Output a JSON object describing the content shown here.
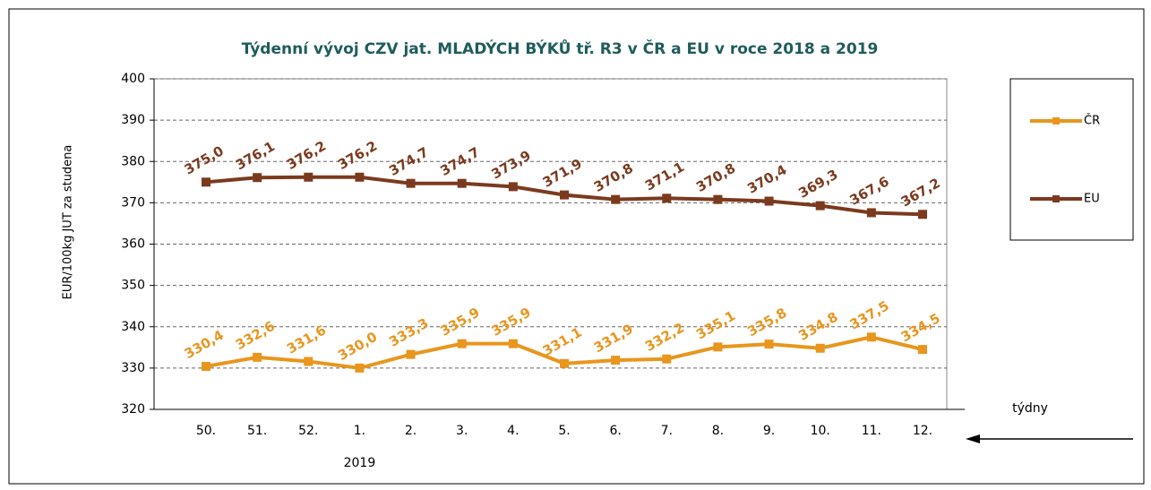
{
  "chart_data": {
    "type": "line",
    "title": "Týdenní  vývoj CZV jat. MLADÝCH BÝKŮ tř. R3  v ČR a EU v roce 2018 a 2019",
    "y_label": "EUR/100kg  JUT za studena",
    "x_label": "týdny",
    "x_sublabel": "2019",
    "categories": [
      "50.",
      "51.",
      "52.",
      "1.",
      "2.",
      "3.",
      "4.",
      "5.",
      "6.",
      "7.",
      "8.",
      "9.",
      "10.",
      "11.",
      "12."
    ],
    "series": [
      {
        "name": "ČR",
        "color": "#e8961e",
        "values": [
          330.4,
          332.6,
          331.6,
          330.0,
          333.3,
          335.9,
          335.9,
          331.1,
          331.9,
          332.2,
          335.1,
          335.8,
          334.8,
          337.5,
          334.5
        ],
        "value_labels": [
          "330,4",
          "332,6",
          "331,6",
          "330,0",
          "333,3",
          "335,9",
          "335,9",
          "331,1",
          "331,9",
          "332,2",
          "335,1",
          "335,8",
          "334,8",
          "337,5",
          "334,5"
        ]
      },
      {
        "name": "EU",
        "color": "#7b3a1e",
        "values": [
          375.0,
          376.1,
          376.2,
          376.2,
          374.7,
          374.7,
          373.9,
          371.9,
          370.8,
          371.1,
          370.8,
          370.4,
          369.3,
          367.6,
          367.2
        ],
        "value_labels": [
          "375,0",
          "376,1",
          "376,2",
          "376,2",
          "374,7",
          "374,7",
          "373,9",
          "371,9",
          "370,8",
          "371,1",
          "370,8",
          "370,4",
          "369,3",
          "367,6",
          "367,2"
        ]
      }
    ],
    "ylim": [
      320,
      400
    ],
    "yticks": [
      320,
      330,
      340,
      350,
      360,
      370,
      380,
      390,
      400
    ],
    "grid": true,
    "legend": "right"
  }
}
